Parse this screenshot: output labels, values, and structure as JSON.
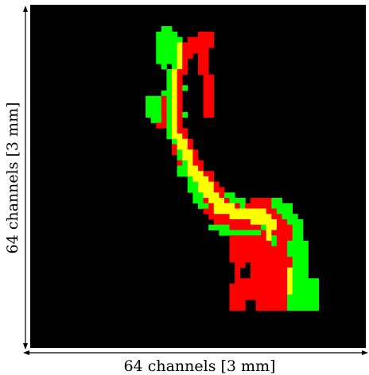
{
  "figure": {
    "xlabel": "64 channels [3 mm]",
    "ylabel": "64 channels [3 mm]",
    "grid": {
      "columns": 64,
      "rows": 64
    },
    "background_color": "#000000",
    "colors": {
      "green": "#00ff00",
      "red": "#ff0000",
      "yellow": "#ffff00"
    },
    "rows": [
      "................................................................",
      "................................................................",
      "................................................................",
      "................................................................",
      ".........................GG.....................................",
      "........................GGGG....RRR.............................",
      "........................GGGGG.RRRRR.............................",
      "........................GGGGYRRRRRR.............................",
      "........................GGGGYRRRRR..............................",
      "........................GGGGYRR.RR..............................",
      "........................GGGGYR..RR..............................",
      ".........................G.GYR..RR..............................",
      "..........................GYRR..RR..............................",
      "..........................GYR....RR.............................",
      "..........................GYR....RR.............................",
      "..........................GYRG...RR.............................",
      ".........................GGYR....RR.............................",
      "......................GGGRGYR....RR.............................",
      "......................GGGRGYR....RR.............................",
      "......................GGGRGYR....RR.............................",
      "......................GGGRGYRG...RR.............................",
      ".......................GGRGYR...................................",
      "........................RRGYR...................................",
      "..........................GYRR..................................",
      "..........................GYYR..................................",
      "...........................GYYR.................................",
      "...........................RYYR.................................",
      "...........................RGYYR................................",
      "............................GYYR................................",
      "............................RGYRR...............................",
      "............................GGYYR...............................",
      "............................GGYYYRR.............................",
      "..............................GYYYR.............................",
      "..............................GGYYYR............................",
      "..............................GGYYYRR...........................",
      "...............................GGYYYRGG.........................",
      "...............................GGRYYYRGGG.RRRRGG................",
      "................................GGRYYYYRGRRRRRGGGG..............",
      ".................................RRYYYYYYYYYYRRGGG..............",
      "..................................RRRRYYYYYYYYRRGGG.............",
      "...................................RRRRRRRYYYYYRRGGG............",
      "..................................GGGGRRRRRRGYYRRRGG............",
      "....................................GGGGGGGGRYRRRRGG............",
      "......................................RRRRRRRYGRRRGG............",
      "......................................RRRRRRRRGRRGGGG...........",
      "......................................RRRRRRRRRRRGGGG...........",
      "......................................RRRRRRRRRRRGGGG...........",
      "......................................RRRRRRRRRRRRGGG...........",
      ".......................................RR.RRRRRRRRGGG...........",
      ".......................................R..RRRRRRRYGGG...........",
      ".......................................R..RRRRRRRYGGG...........",
      ".......................................RRRRRRRRRRYGGGGG.........",
      "......................................RRRRRRRRRRRYGGGGG.........",
      "......................................RRRRRRRRRRRYGGGGG.........",
      "......................................RRRRRRRRRRRGGGGGG.........",
      "......................................RRR..RRRRRRGGGGGG.........",
      "......................................RRR..RRRRRRGGGGGG.........",
      "................................................................",
      "................................................................",
      "................................................................",
      "................................................................",
      "................................................................",
      "................................................................",
      "................................................................"
    ]
  }
}
